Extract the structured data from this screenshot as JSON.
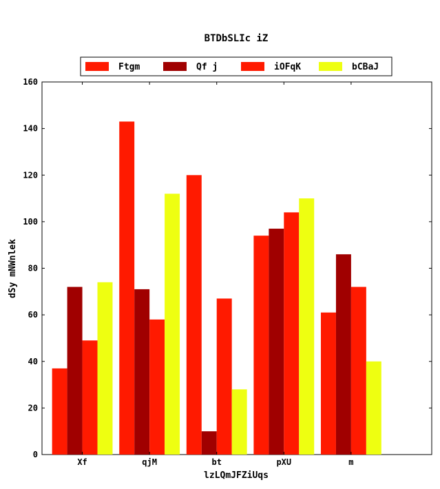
{
  "chart_data": {
    "type": "bar",
    "title": "BTDbSLIc iZ",
    "xlabel": "lzLQmJFZiUqs",
    "ylabel": "dSy mNWnlek",
    "ylim": [
      0,
      160
    ],
    "yticks": [
      0,
      20,
      40,
      60,
      80,
      100,
      120,
      140,
      160
    ],
    "categories": [
      "Xf",
      "qjM",
      "bt",
      "pXU",
      "m"
    ],
    "legend_position": "top-center",
    "grid": false,
    "series": [
      {
        "name": "Ftgm",
        "color": "#ff1a00",
        "values": [
          37,
          143,
          120,
          94,
          61
        ]
      },
      {
        "name": "Qf j",
        "color": "#a00000",
        "values": [
          72,
          71,
          10,
          97,
          86
        ]
      },
      {
        "name": "iOFqK",
        "color": "#ff1a00",
        "values": [
          49,
          58,
          67,
          104,
          72
        ]
      },
      {
        "name": "bCBaJ",
        "color": "#eeff11",
        "values": [
          74,
          112,
          28,
          110,
          40
        ]
      }
    ]
  }
}
